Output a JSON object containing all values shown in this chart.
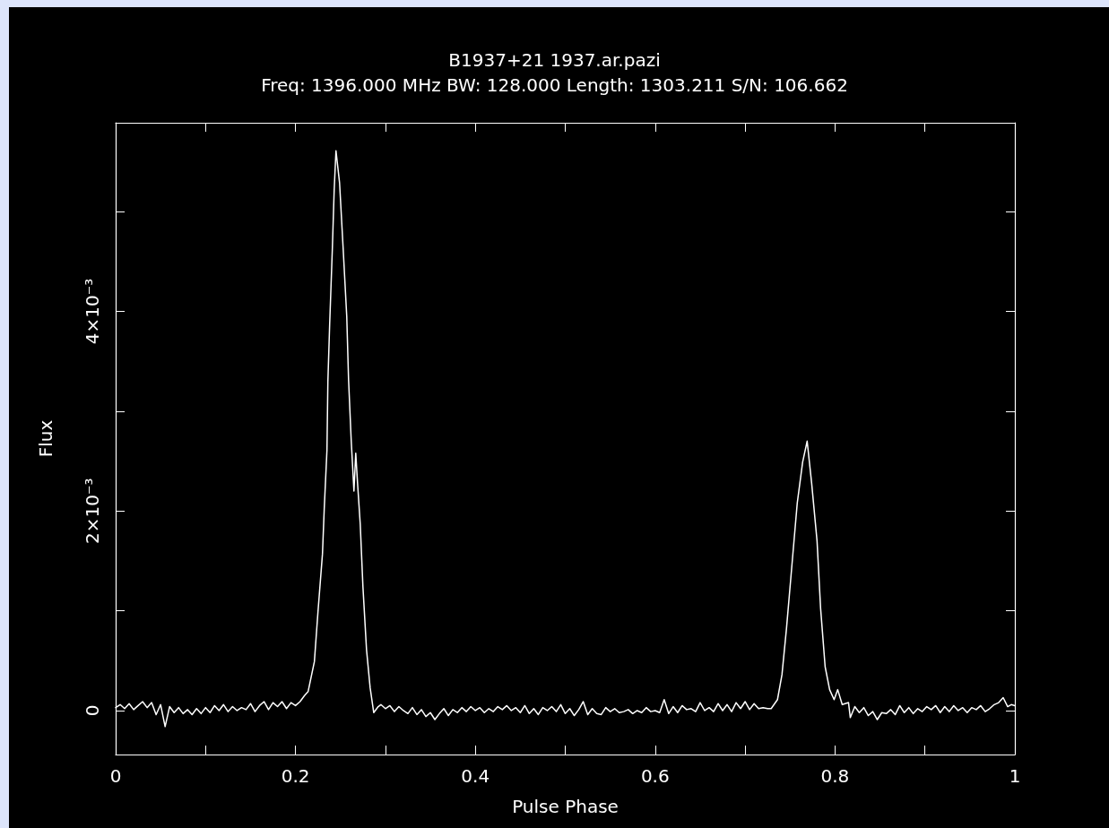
{
  "chart_data": {
    "type": "line",
    "title": "B1937+21 1937.ar.pazi",
    "subtitle": "Freq: 1396.000 MHz BW: 128.000 Length: 1303.211 S/N: 106.662",
    "xlabel": "Pulse Phase",
    "ylabel": "Flux",
    "x": [
      0,
      0.005,
      0.01,
      0.015,
      0.02,
      0.025,
      0.03,
      0.035,
      0.04,
      0.045,
      0.05,
      0.055,
      0.06,
      0.065,
      0.07,
      0.075,
      0.08,
      0.085,
      0.09,
      0.095,
      0.1,
      0.105,
      0.11,
      0.115,
      0.12,
      0.125,
      0.13,
      0.135,
      0.14,
      0.145,
      0.15,
      0.155,
      0.16,
      0.165,
      0.17,
      0.175,
      0.18,
      0.185,
      0.19,
      0.195,
      0.2,
      0.205,
      0.21,
      0.214,
      0.221,
      0.225,
      0.23,
      0.232,
      0.235,
      0.236,
      0.238,
      0.241,
      0.243,
      0.245,
      0.249,
      0.253,
      0.257,
      0.259,
      0.262,
      0.265,
      0.267,
      0.269,
      0.272,
      0.275,
      0.279,
      0.283,
      0.287,
      0.292,
      0.295,
      0.3,
      0.305,
      0.31,
      0.315,
      0.32,
      0.325,
      0.33,
      0.335,
      0.34,
      0.345,
      0.35,
      0.355,
      0.36,
      0.365,
      0.37,
      0.375,
      0.38,
      0.385,
      0.39,
      0.395,
      0.4,
      0.405,
      0.41,
      0.415,
      0.42,
      0.425,
      0.43,
      0.435,
      0.44,
      0.445,
      0.45,
      0.455,
      0.46,
      0.465,
      0.47,
      0.475,
      0.48,
      0.485,
      0.49,
      0.495,
      0.5,
      0.505,
      0.51,
      0.515,
      0.52,
      0.525,
      0.53,
      0.535,
      0.54,
      0.545,
      0.55,
      0.555,
      0.56,
      0.565,
      0.57,
      0.575,
      0.58,
      0.585,
      0.59,
      0.595,
      0.6,
      0.605,
      0.61,
      0.615,
      0.62,
      0.625,
      0.63,
      0.635,
      0.64,
      0.645,
      0.65,
      0.655,
      0.66,
      0.665,
      0.67,
      0.675,
      0.68,
      0.685,
      0.69,
      0.695,
      0.7,
      0.705,
      0.71,
      0.715,
      0.72,
      0.725,
      0.729,
      0.736,
      0.741,
      0.746,
      0.752,
      0.758,
      0.764,
      0.769,
      0.774,
      0.78,
      0.784,
      0.789,
      0.794,
      0.799,
      0.803,
      0.808,
      0.815,
      0.817,
      0.822,
      0.827,
      0.832,
      0.837,
      0.842,
      0.847,
      0.852,
      0.857,
      0.862,
      0.867,
      0.872,
      0.877,
      0.882,
      0.887,
      0.892,
      0.897,
      0.902,
      0.907,
      0.912,
      0.917,
      0.922,
      0.927,
      0.932,
      0.937,
      0.942,
      0.947,
      0.952,
      0.957,
      0.962,
      0.967,
      0.972,
      0.977,
      0.982,
      0.987,
      0.992,
      0.996,
      1.0
    ],
    "series": [
      {
        "color": "#ffffff",
        "values": [
          3e-05,
          6e-05,
          2e-05,
          7e-05,
          1e-05,
          5e-05,
          9e-05,
          3e-05,
          8e-05,
          -4e-05,
          6e-05,
          -0.00016,
          4e-05,
          -2e-05,
          3e-05,
          -3e-05,
          1e-05,
          -4e-05,
          2e-05,
          -3e-05,
          3e-05,
          -2e-05,
          5e-05,
          0,
          6e-05,
          -1e-05,
          4e-05,
          0,
          3e-05,
          1e-05,
          7e-05,
          -1e-05,
          5e-05,
          9e-05,
          1e-05,
          8e-05,
          4e-05,
          9e-05,
          2e-05,
          8e-05,
          5e-05,
          9e-05,
          0.00015,
          0.00019,
          0.00049,
          0.00099,
          0.00157,
          0.00203,
          0.00261,
          0.00329,
          0.00387,
          0.00463,
          0.00521,
          0.00561,
          0.00529,
          0.00463,
          0.00395,
          0.00332,
          0.0027,
          0.0022,
          0.00258,
          0.00228,
          0.00187,
          0.00124,
          0.00061,
          0.00023,
          -2e-05,
          4e-05,
          6e-05,
          2e-05,
          5e-05,
          -1e-05,
          4e-05,
          0,
          -3e-05,
          3e-05,
          -4e-05,
          1e-05,
          -6e-05,
          -2e-05,
          -9e-05,
          -3e-05,
          2e-05,
          -5e-05,
          1e-05,
          -2e-05,
          3e-05,
          -1e-05,
          4e-05,
          0,
          3e-05,
          -2e-05,
          2e-05,
          -1e-05,
          4e-05,
          1e-05,
          5e-05,
          0,
          3e-05,
          -2e-05,
          5e-05,
          -3e-05,
          2e-05,
          -4e-05,
          3e-05,
          0,
          4e-05,
          -1e-05,
          6e-05,
          -3e-05,
          2e-05,
          -5e-05,
          1e-05,
          9e-05,
          -4e-05,
          2e-05,
          -3e-05,
          -4e-05,
          3e-05,
          -1e-05,
          2e-05,
          -2e-05,
          -1e-05,
          1e-05,
          -3e-05,
          0,
          -2e-05,
          3e-05,
          -1e-05,
          0,
          -2e-05,
          0.00011,
          -3e-05,
          4e-05,
          -2e-05,
          5e-05,
          1e-05,
          2e-05,
          -1e-05,
          8e-05,
          0,
          3e-05,
          -1e-05,
          7e-05,
          0,
          6e-05,
          -1e-05,
          8e-05,
          2e-05,
          9e-05,
          1e-05,
          7e-05,
          2e-05,
          3e-05,
          2e-05,
          2e-05,
          0.00011,
          0.00036,
          0.00082,
          0.00145,
          0.00208,
          0.00249,
          0.0027,
          0.00228,
          0.0017,
          0.00102,
          0.00044,
          0.00021,
          0.00011,
          0.00021,
          6e-05,
          8e-05,
          -7e-05,
          4e-05,
          -2e-05,
          3e-05,
          -5e-05,
          -1e-05,
          -9e-05,
          -2e-05,
          -3e-05,
          1e-05,
          -4e-05,
          5e-05,
          -2e-05,
          3e-05,
          -3e-05,
          2e-05,
          -1e-05,
          4e-05,
          1e-05,
          5e-05,
          -2e-05,
          4e-05,
          -1e-05,
          5e-05,
          0,
          3e-05,
          -2e-05,
          3e-05,
          1e-05,
          5e-05,
          -1e-05,
          2e-05,
          6e-05,
          8e-05,
          0.00013,
          4e-05,
          6e-05,
          5e-05
        ]
      }
    ],
    "xlim": [
      0,
      1
    ],
    "xticks": [
      0,
      {
        "value": 0.1,
        "label": null
      },
      0.2,
      {
        "value": 0.3,
        "label": null
      },
      0.4,
      {
        "value": 0.5,
        "label": null
      },
      0.6,
      {
        "value": 0.7,
        "label": null
      },
      0.8,
      {
        "value": 0.9,
        "label": null
      },
      1
    ],
    "ylim": [
      -0.00044,
      0.00589
    ],
    "yticks": [
      0,
      {
        "value": 0.001,
        "label": null
      },
      {
        "value": 0.002,
        "label": "2×10⁻³"
      },
      {
        "value": 0.003,
        "label": null
      },
      {
        "value": 0.004,
        "label": "4×10⁻³"
      },
      {
        "value": 0.005,
        "label": null
      }
    ],
    "marker": "none",
    "line_style": "solid"
  }
}
